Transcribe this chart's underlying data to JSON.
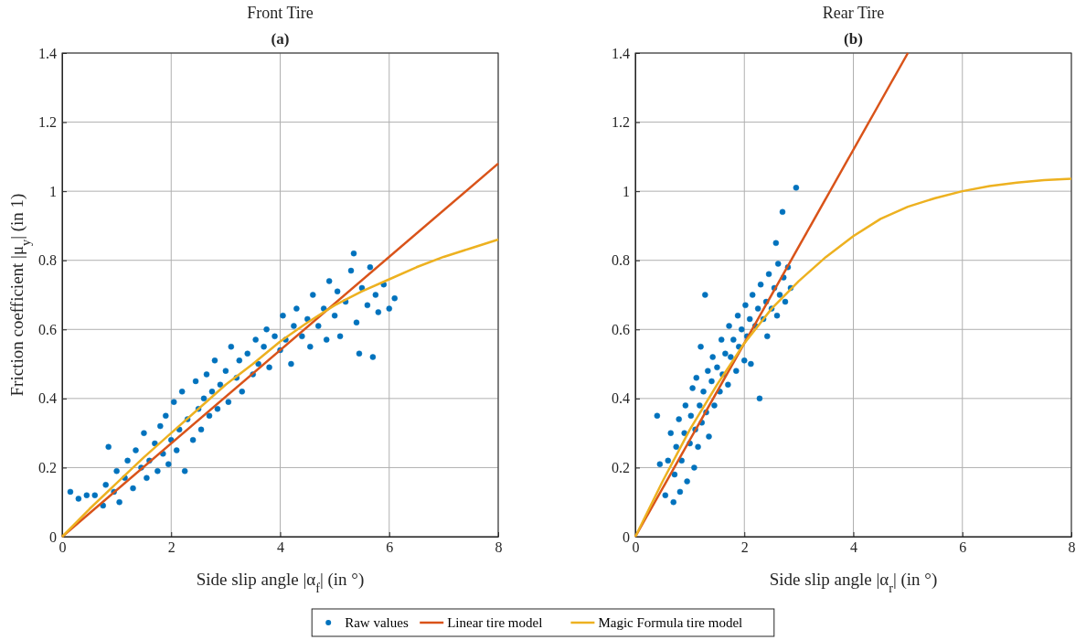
{
  "chart_data": [
    {
      "type": "scatter",
      "title": "Front Tire",
      "subtitle": "(a)",
      "xlabel": "Side slip angle |α$_{f}$| (in °)",
      "ylabel": "Friction coefficient |μ$_{y}$| (in 1)",
      "xlim": [
        0,
        8
      ],
      "xticks": [
        0,
        2,
        4,
        6,
        8
      ],
      "ylim": [
        0,
        1.4
      ],
      "yticks": [
        0,
        0.2,
        0.4,
        0.6,
        0.8,
        1,
        1.2,
        1.4
      ],
      "grid": true,
      "legend": "bottom",
      "series": [
        {
          "name": "Raw values",
          "type": "scatter",
          "marker": "circle",
          "color": "#0072bd",
          "x": [
            0.15,
            0.3,
            0.45,
            0.6,
            0.75,
            0.8,
            0.85,
            0.95,
            1.0,
            1.05,
            1.15,
            1.2,
            1.3,
            1.35,
            1.45,
            1.5,
            1.55,
            1.6,
            1.7,
            1.75,
            1.8,
            1.85,
            1.9,
            1.95,
            2.0,
            2.05,
            2.1,
            2.15,
            2.2,
            2.25,
            2.3,
            2.4,
            2.45,
            2.5,
            2.55,
            2.6,
            2.65,
            2.7,
            2.75,
            2.8,
            2.85,
            2.9,
            3.0,
            3.05,
            3.1,
            3.2,
            3.25,
            3.3,
            3.4,
            3.5,
            3.55,
            3.6,
            3.7,
            3.75,
            3.8,
            3.9,
            4.0,
            4.05,
            4.1,
            4.2,
            4.25,
            4.3,
            4.4,
            4.5,
            4.55,
            4.6,
            4.7,
            4.8,
            4.85,
            4.9,
            5.0,
            5.05,
            5.1,
            5.2,
            5.3,
            5.35,
            5.4,
            5.45,
            5.5,
            5.6,
            5.65,
            5.7,
            5.75,
            5.8,
            5.9,
            6.0,
            6.1
          ],
          "values": [
            0.13,
            0.11,
            0.12,
            0.12,
            0.09,
            0.15,
            0.26,
            0.13,
            0.19,
            0.1,
            0.17,
            0.22,
            0.14,
            0.25,
            0.2,
            0.3,
            0.17,
            0.22,
            0.27,
            0.19,
            0.32,
            0.24,
            0.35,
            0.21,
            0.28,
            0.39,
            0.25,
            0.31,
            0.42,
            0.19,
            0.34,
            0.28,
            0.45,
            0.37,
            0.31,
            0.4,
            0.47,
            0.35,
            0.42,
            0.51,
            0.37,
            0.44,
            0.48,
            0.39,
            0.55,
            0.46,
            0.51,
            0.42,
            0.53,
            0.47,
            0.57,
            0.5,
            0.55,
            0.6,
            0.49,
            0.58,
            0.54,
            0.64,
            0.57,
            0.5,
            0.61,
            0.66,
            0.58,
            0.63,
            0.55,
            0.7,
            0.61,
            0.66,
            0.57,
            0.74,
            0.64,
            0.71,
            0.58,
            0.68,
            0.77,
            0.82,
            0.62,
            0.53,
            0.72,
            0.67,
            0.78,
            0.52,
            0.7,
            0.65,
            0.73,
            0.66,
            0.69
          ]
        },
        {
          "name": "Linear tire model",
          "type": "line",
          "line_style": "solid",
          "color": "#d95319",
          "x": [
            0,
            8
          ],
          "values": [
            0,
            1.08
          ]
        },
        {
          "name": "Magic Formula tire model",
          "type": "line",
          "line_style": "solid",
          "color": "#edb120",
          "x": [
            0,
            0.5,
            1,
            1.5,
            2,
            2.5,
            3,
            3.5,
            4,
            4.5,
            5,
            5.5,
            6,
            6.5,
            7,
            7.5,
            8
          ],
          "values": [
            0,
            0.08,
            0.155,
            0.23,
            0.3,
            0.37,
            0.44,
            0.5,
            0.565,
            0.62,
            0.67,
            0.71,
            0.745,
            0.78,
            0.81,
            0.835,
            0.86
          ]
        }
      ]
    },
    {
      "type": "scatter",
      "title": "Rear Tire",
      "subtitle": "(b)",
      "xlabel": "Side slip angle |α$_{r}$| (in °)",
      "xlim": [
        0,
        8
      ],
      "xticks": [
        0,
        2,
        4,
        6,
        8
      ],
      "ylim": [
        0,
        1.4
      ],
      "yticks": [
        0,
        0.2,
        0.4,
        0.6,
        0.8,
        1,
        1.2,
        1.4
      ],
      "grid": true,
      "series": [
        {
          "type": "scatter",
          "marker": "circle",
          "color": "#0072bd",
          "x": [
            0.4,
            0.45,
            0.55,
            0.6,
            0.65,
            0.7,
            0.72,
            0.75,
            0.8,
            0.82,
            0.85,
            0.9,
            0.92,
            0.95,
            1.0,
            1.02,
            1.05,
            1.08,
            1.1,
            1.12,
            1.15,
            1.18,
            1.2,
            1.22,
            1.25,
            1.28,
            1.3,
            1.33,
            1.35,
            1.4,
            1.42,
            1.45,
            1.5,
            1.55,
            1.58,
            1.6,
            1.65,
            1.7,
            1.72,
            1.75,
            1.8,
            1.85,
            1.88,
            1.9,
            1.95,
            2.0,
            2.02,
            2.05,
            2.1,
            2.12,
            2.15,
            2.2,
            2.25,
            2.28,
            2.3,
            2.35,
            2.4,
            2.42,
            2.45,
            2.5,
            2.55,
            2.58,
            2.6,
            2.62,
            2.65,
            2.7,
            2.72,
            2.75,
            2.8,
            2.85,
            2.95
          ],
          "values": [
            0.35,
            0.21,
            0.12,
            0.22,
            0.3,
            0.1,
            0.18,
            0.26,
            0.34,
            0.13,
            0.22,
            0.3,
            0.38,
            0.16,
            0.27,
            0.35,
            0.43,
            0.2,
            0.31,
            0.46,
            0.26,
            0.38,
            0.55,
            0.33,
            0.42,
            0.7,
            0.36,
            0.48,
            0.29,
            0.45,
            0.52,
            0.38,
            0.49,
            0.42,
            0.57,
            0.47,
            0.53,
            0.44,
            0.61,
            0.52,
            0.57,
            0.48,
            0.64,
            0.55,
            0.6,
            0.51,
            0.67,
            0.58,
            0.63,
            0.5,
            0.7,
            0.61,
            0.66,
            0.4,
            0.73,
            0.63,
            0.68,
            0.58,
            0.76,
            0.66,
            0.72,
            0.85,
            0.64,
            0.79,
            0.7,
            0.94,
            0.75,
            0.68,
            0.78,
            0.72,
            1.01
          ]
        },
        {
          "type": "line",
          "line_style": "solid",
          "color": "#d95319",
          "x": [
            0,
            5
          ],
          "values": [
            0,
            1.4
          ]
        },
        {
          "type": "line",
          "line_style": "solid",
          "color": "#edb120",
          "x": [
            0,
            0.5,
            1,
            1.5,
            2,
            2.5,
            3,
            3.5,
            4,
            4.5,
            5,
            5.5,
            6,
            6.5,
            7,
            7.5,
            8
          ],
          "values": [
            0,
            0.16,
            0.31,
            0.44,
            0.56,
            0.66,
            0.74,
            0.81,
            0.87,
            0.92,
            0.955,
            0.98,
            1.0,
            1.015,
            1.025,
            1.032,
            1.036
          ]
        }
      ]
    }
  ]
}
